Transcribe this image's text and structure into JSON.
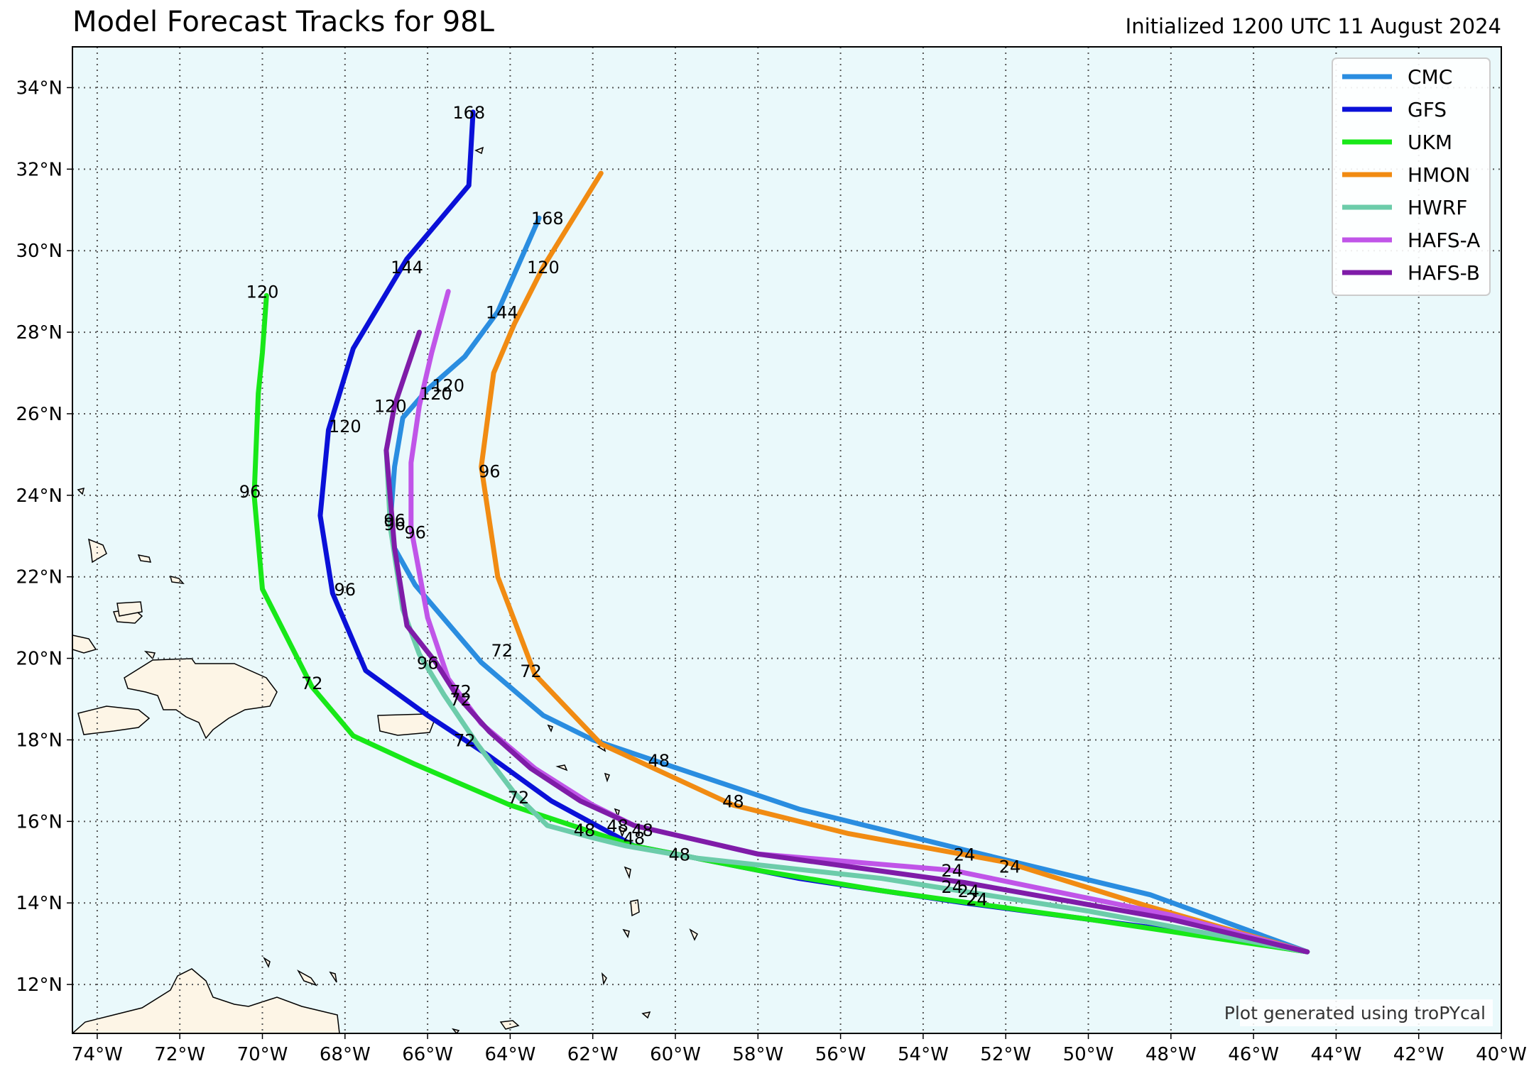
{
  "title": "Model Forecast Tracks for 98L",
  "subtitle": "Initialized 1200 UTC 11 August 2024",
  "credit": "Plot generated using troPYcal",
  "colors": {
    "ocean": "#eaf9fb",
    "land": "#fdf5e6",
    "grid": "#555555",
    "frame": "#000000"
  },
  "chart_data": {
    "type": "line",
    "x_axis": {
      "ticks": [
        -74,
        -72,
        -70,
        -68,
        -66,
        -64,
        -62,
        -60,
        -58,
        -56,
        -54,
        -52,
        -50,
        -48,
        -46,
        -44,
        -42,
        -40
      ],
      "labels": [
        "74°W",
        "72°W",
        "70°W",
        "68°W",
        "66°W",
        "64°W",
        "62°W",
        "60°W",
        "58°W",
        "56°W",
        "54°W",
        "52°W",
        "50°W",
        "48°W",
        "46°W",
        "44°W",
        "42°W",
        "40°W"
      ],
      "range": [
        -74.6,
        -40
      ]
    },
    "y_axis": {
      "ticks": [
        12,
        14,
        16,
        18,
        20,
        22,
        24,
        26,
        28,
        30,
        32,
        34
      ],
      "labels": [
        "12°N",
        "14°N",
        "16°N",
        "18°N",
        "20°N",
        "22°N",
        "24°N",
        "26°N",
        "28°N",
        "30°N",
        "32°N",
        "34°N"
      ],
      "range": [
        10.8,
        35
      ]
    },
    "grid": true,
    "legend_position": "top-right",
    "series": [
      {
        "name": "CMC",
        "color": "#2a8de0",
        "lon": [
          -44.7,
          -48.5,
          -53,
          -57,
          -62,
          -63.2,
          -64.7,
          -66.3,
          -66.8,
          -66.9,
          -66.8,
          -66.6,
          -66,
          -65.1,
          -64.3,
          -63.3
        ],
        "lat": [
          12.8,
          14.2,
          15.3,
          16.3,
          18,
          18.6,
          19.9,
          21.8,
          22.7,
          23.4,
          24.7,
          25.9,
          26.6,
          27.4,
          28.5,
          30.8
        ],
        "labels": [
          {
            "text": "24",
            "lon": -53.0,
            "lat": 15.2
          },
          {
            "text": "48",
            "lon": -60.4,
            "lat": 17.5
          },
          {
            "text": "72",
            "lon": -64.2,
            "lat": 20.2
          },
          {
            "text": "96",
            "lon": -66.8,
            "lat": 23.4
          },
          {
            "text": "120",
            "lon": -65.5,
            "lat": 26.7
          },
          {
            "text": "144",
            "lon": -64.2,
            "lat": 28.5
          },
          {
            "text": "168",
            "lon": -63.1,
            "lat": 30.8
          }
        ]
      },
      {
        "name": "GFS",
        "color": "#0a10d8",
        "lon": [
          -44.7,
          -48.5,
          -53,
          -57,
          -61,
          -63,
          -64.5,
          -66,
          -67.5,
          -68.3,
          -68.6,
          -68.4,
          -67.8,
          -66.5,
          -65,
          -64.9
        ],
        "lat": [
          12.8,
          13.4,
          14,
          14.6,
          15.4,
          16.5,
          17.6,
          18.6,
          19.7,
          21.6,
          23.5,
          25.6,
          27.6,
          29.8,
          31.6,
          33.4
        ],
        "labels": [
          {
            "text": "24",
            "lon": -52.7,
            "lat": 14.1
          },
          {
            "text": "48",
            "lon": -61.0,
            "lat": 15.6
          },
          {
            "text": "72",
            "lon": -65.1,
            "lat": 18.0
          },
          {
            "text": "96",
            "lon": -68.0,
            "lat": 21.7
          },
          {
            "text": "120",
            "lon": -68.0,
            "lat": 25.7
          },
          {
            "text": "144",
            "lon": -66.5,
            "lat": 29.6
          },
          {
            "text": "168",
            "lon": -65.0,
            "lat": 33.4
          }
        ]
      },
      {
        "name": "UKM",
        "color": "#18e818",
        "lon": [
          -44.7,
          -50,
          -55,
          -58,
          -61,
          -62.5,
          -64,
          -66.3,
          -67.8,
          -68.8,
          -70,
          -70.2,
          -70.1,
          -70,
          -69.9
        ],
        "lat": [
          12.8,
          13.6,
          14.3,
          14.8,
          15.4,
          15.9,
          16.4,
          17.4,
          18.1,
          19.3,
          21.7,
          24,
          26.5,
          27.5,
          28.9
        ],
        "labels": [
          {
            "text": "24",
            "lon": -52.9,
            "lat": 14.3
          },
          {
            "text": "48",
            "lon": -62.2,
            "lat": 15.8
          },
          {
            "text": "72",
            "lon": -68.8,
            "lat": 19.4
          },
          {
            "text": "96",
            "lon": -70.3,
            "lat": 24.1
          },
          {
            "text": "120",
            "lon": -70.0,
            "lat": 29.0
          }
        ]
      },
      {
        "name": "HMON",
        "color": "#f18b12",
        "lon": [
          -44.7,
          -48.5,
          -52,
          -55.8,
          -58.6,
          -61.8,
          -63.4,
          -64.3,
          -64.7,
          -64.4,
          -63.9,
          -63.2,
          -61.8
        ],
        "lat": [
          12.8,
          13.9,
          15,
          15.7,
          16.4,
          17.9,
          19.6,
          22,
          24.7,
          27,
          28.2,
          29.6,
          31.9
        ],
        "labels": [
          {
            "text": "24",
            "lon": -51.9,
            "lat": 14.9
          },
          {
            "text": "48",
            "lon": -58.6,
            "lat": 16.5
          },
          {
            "text": "72",
            "lon": -63.5,
            "lat": 19.7
          },
          {
            "text": "96",
            "lon": -64.5,
            "lat": 24.6
          },
          {
            "text": "120",
            "lon": -63.2,
            "lat": 29.6
          }
        ]
      },
      {
        "name": "HWRF",
        "color": "#6cccaa",
        "lon": [
          -44.7,
          -50,
          -55,
          -59.5,
          -61.2,
          -62,
          -63.1,
          -63.9,
          -64.8,
          -65.6,
          -66.2,
          -66.6,
          -66.9,
          -67.0
        ],
        "lat": [
          12.8,
          13.8,
          14.6,
          15.1,
          15.4,
          15.6,
          15.9,
          16.7,
          17.9,
          19.1,
          20.1,
          21.2,
          23.2,
          25.1
        ],
        "labels": [
          {
            "text": "24",
            "lon": -52.7,
            "lat": 14.1
          },
          {
            "text": "48",
            "lon": -59.9,
            "lat": 15.2
          },
          {
            "text": "72",
            "lon": -63.8,
            "lat": 16.6
          },
          {
            "text": "96",
            "lon": -66.8,
            "lat": 23.3
          }
        ]
      },
      {
        "name": "HAFS-A",
        "color": "#c055e8",
        "lon": [
          -44.7,
          -48,
          -53.3,
          -58,
          -61,
          -62,
          -63.4,
          -64.7,
          -65.5,
          -66.0,
          -66.4,
          -66.4,
          -66.2,
          -65.9,
          -65.5
        ],
        "lat": [
          12.8,
          13.7,
          14.8,
          15.2,
          15.9,
          16.4,
          17.3,
          18.4,
          19.5,
          21,
          23.2,
          24.8,
          26.2,
          27.5,
          29
        ],
        "labels": [
          {
            "text": "24",
            "lon": -53.3,
            "lat": 14.8
          },
          {
            "text": "48",
            "lon": -60.8,
            "lat": 15.8
          },
          {
            "text": "72",
            "lon": -65.2,
            "lat": 19.2
          },
          {
            "text": "96",
            "lon": -66.3,
            "lat": 23.1
          },
          {
            "text": "120",
            "lon": -65.8,
            "lat": 26.5
          }
        ]
      },
      {
        "name": "HAFS-B",
        "color": "#7f1ca8",
        "lon": [
          -44.7,
          -48,
          -53,
          -58,
          -61,
          -62.3,
          -63.5,
          -64.5,
          -65.3,
          -65.8,
          -66.5,
          -66.8,
          -67.0,
          -66.8,
          -66.5,
          -66.2
        ],
        "lat": [
          12.8,
          13.6,
          14.5,
          15.2,
          15.9,
          16.5,
          17.3,
          18.2,
          19.1,
          19.9,
          20.8,
          22.7,
          25.1,
          26.2,
          27.1,
          28
        ],
        "labels": [
          {
            "text": "24",
            "lon": -53.3,
            "lat": 14.4
          },
          {
            "text": "48",
            "lon": -61.4,
            "lat": 15.9
          },
          {
            "text": "72",
            "lon": -65.2,
            "lat": 19.0
          },
          {
            "text": "96",
            "lon": -66.0,
            "lat": 19.9
          },
          {
            "text": "120",
            "lon": -66.9,
            "lat": 26.2
          }
        ]
      }
    ]
  }
}
